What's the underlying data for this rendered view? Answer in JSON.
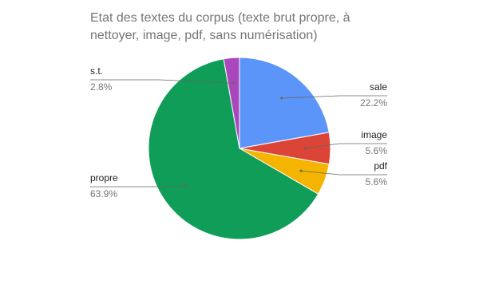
{
  "chart_data": {
    "type": "pie",
    "title": "Etat des textes du corpus (texte brut propre, à nettoyer, image, pdf, sans numérisation)",
    "categories": [
      "sale",
      "image",
      "pdf",
      "propre",
      "s.t."
    ],
    "values": [
      22.2,
      5.6,
      5.6,
      63.9,
      2.8
    ],
    "value_labels": [
      "22.2%",
      "5.6%",
      "5.6%",
      "63.9%",
      "2.8%"
    ],
    "colors": [
      "#5b95f9",
      "#db4437",
      "#f4b400",
      "#0f9d58",
      "#ab47bc"
    ]
  }
}
